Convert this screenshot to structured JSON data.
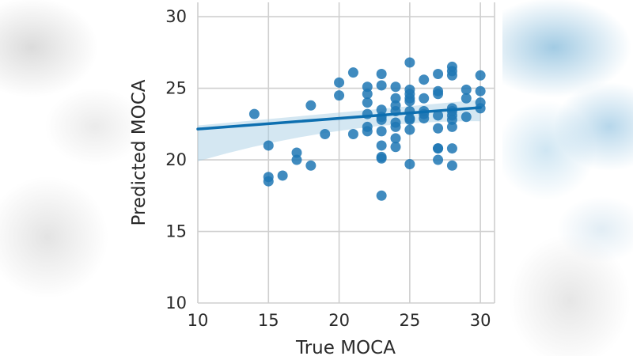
{
  "chart_data": {
    "type": "scatter",
    "title": "",
    "xlabel": "True MOCA",
    "ylabel": "Predicted MOCA",
    "xlim": [
      10,
      31
    ],
    "ylim": [
      10,
      31
    ],
    "xticks": [
      "10",
      "15",
      "20",
      "25",
      "30"
    ],
    "yticks": [
      "10",
      "15",
      "20",
      "25",
      "30"
    ],
    "grid": true,
    "colors": {
      "points": "#1f77b4",
      "line": "#0d6fb0",
      "band": "#a9cfe6",
      "grid": "#cfcfcf"
    },
    "regression": {
      "slope": 0.075,
      "intercept": 21.4,
      "x_range": [
        10,
        30
      ],
      "ci_upper_at_x10": 22.4,
      "ci_lower_at_x10": 19.9,
      "ci_upper_at_x30": 24.2,
      "ci_lower_at_x30": 22.7
    },
    "series": [
      {
        "name": "samples",
        "points": [
          [
            14,
            23.2
          ],
          [
            15,
            21.0
          ],
          [
            15,
            18.8
          ],
          [
            15,
            18.5
          ],
          [
            16,
            18.9
          ],
          [
            17,
            20.5
          ],
          [
            17,
            20.0
          ],
          [
            18,
            23.8
          ],
          [
            18,
            19.6
          ],
          [
            19,
            21.8
          ],
          [
            20,
            25.4
          ],
          [
            20,
            24.5
          ],
          [
            21,
            26.1
          ],
          [
            21,
            21.8
          ],
          [
            22,
            25.1
          ],
          [
            22,
            24.6
          ],
          [
            22,
            24.0
          ],
          [
            22,
            23.2
          ],
          [
            22,
            22.3
          ],
          [
            22,
            22.0
          ],
          [
            23,
            26.0
          ],
          [
            23,
            25.2
          ],
          [
            23,
            23.5
          ],
          [
            23,
            23.0
          ],
          [
            23,
            22.8
          ],
          [
            23,
            22.0
          ],
          [
            23,
            21.0
          ],
          [
            23,
            20.2
          ],
          [
            23,
            20.1
          ],
          [
            23,
            17.5
          ],
          [
            24,
            25.1
          ],
          [
            24,
            24.3
          ],
          [
            24,
            23.8
          ],
          [
            24,
            23.4
          ],
          [
            24,
            22.6
          ],
          [
            24,
            22.3
          ],
          [
            24,
            21.5
          ],
          [
            24,
            20.9
          ],
          [
            25,
            26.8
          ],
          [
            25,
            24.9
          ],
          [
            25,
            24.6
          ],
          [
            25,
            24.3
          ],
          [
            25,
            24.1
          ],
          [
            25,
            23.4
          ],
          [
            25,
            22.9
          ],
          [
            25,
            22.8
          ],
          [
            25,
            22.1
          ],
          [
            25,
            19.7
          ],
          [
            26,
            25.6
          ],
          [
            26,
            24.3
          ],
          [
            26,
            23.4
          ],
          [
            26,
            23.2
          ],
          [
            26,
            22.9
          ],
          [
            27,
            26.0
          ],
          [
            27,
            24.8
          ],
          [
            27,
            24.6
          ],
          [
            27,
            23.1
          ],
          [
            27,
            22.2
          ],
          [
            27,
            20.8
          ],
          [
            27,
            20.8
          ],
          [
            27,
            20.0
          ],
          [
            28,
            26.5
          ],
          [
            28,
            26.2
          ],
          [
            28,
            25.9
          ],
          [
            28,
            23.6
          ],
          [
            28,
            23.4
          ],
          [
            28,
            23.1
          ],
          [
            28,
            22.8
          ],
          [
            28,
            22.3
          ],
          [
            28,
            20.8
          ],
          [
            28,
            19.6
          ],
          [
            29,
            24.9
          ],
          [
            29,
            24.3
          ],
          [
            29,
            23.0
          ],
          [
            30,
            25.9
          ],
          [
            30,
            24.8
          ],
          [
            30,
            24.0
          ],
          [
            30,
            23.6
          ]
        ]
      }
    ]
  }
}
